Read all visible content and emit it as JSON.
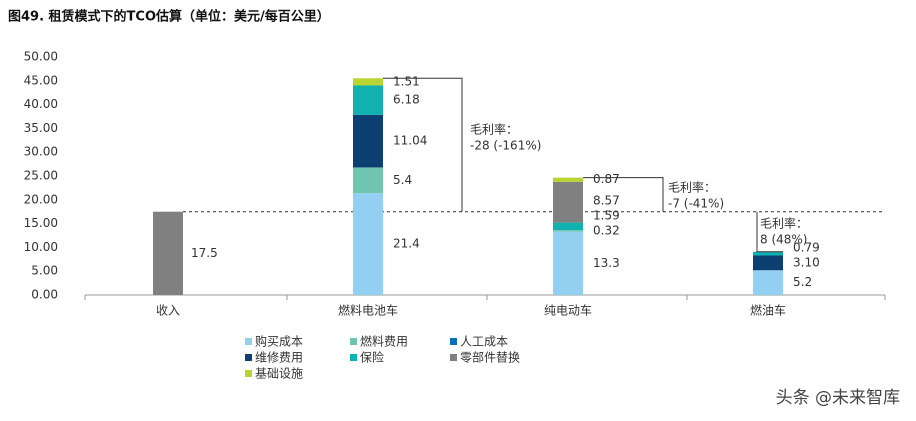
{
  "chart_data": {
    "type": "stacked_bar",
    "title": "图49. 租赁模式下的TCO估算（单位：美元/每百公里）",
    "categories": [
      "收入",
      "燃料电池车",
      "纯电动车",
      "燃油车"
    ],
    "revenue": {
      "value": 17.5,
      "color": "#808080"
    },
    "series": [
      {
        "name": "购买成本",
        "color": "#92cff0",
        "values": [
          null,
          21.4,
          13.3,
          5.2
        ]
      },
      {
        "name": "燃料费用",
        "color": "#6fc5b0",
        "values": [
          null,
          5.4,
          0.32,
          null
        ]
      },
      {
        "name": "人工成本",
        "color": "#0b70b5",
        "values": [
          null,
          null,
          null,
          null
        ]
      },
      {
        "name": "维修费用",
        "color": "#0d3f73",
        "values": [
          null,
          11.04,
          null,
          3.1
        ],
        "value_labels": [
          null,
          "11.04",
          null,
          "3.10"
        ]
      },
      {
        "name": "保险",
        "color": "#11b1b0",
        "values": [
          null,
          6.18,
          1.59,
          0.79
        ]
      },
      {
        "name": "零部件替换",
        "color": "#808080",
        "values": [
          null,
          null,
          8.57,
          null
        ]
      },
      {
        "name": "基础设施",
        "color": "#b8d433",
        "values": [
          null,
          1.51,
          0.87,
          null
        ]
      }
    ],
    "annotations": [
      {
        "label": "毛利率：",
        "text": "-28 (-161%)"
      },
      {
        "label": "毛利率：",
        "text": "-7 (-41%)"
      },
      {
        "label": "毛利率：",
        "text": "8 (48%)"
      }
    ],
    "ylim": [
      0,
      50
    ],
    "yticks": [
      {
        "value": 0,
        "label": "0.00"
      },
      {
        "value": 5,
        "label": "5.00"
      },
      {
        "value": 10,
        "label": "10.00"
      },
      {
        "value": 15,
        "label": "15.00"
      },
      {
        "value": 20,
        "label": "20.00"
      },
      {
        "value": 25,
        "label": "25.00"
      },
      {
        "value": 30,
        "label": "30.00"
      },
      {
        "value": 35,
        "label": "35.00"
      },
      {
        "value": 40,
        "label": "40.00"
      },
      {
        "value": 45,
        "label": "45.00"
      },
      {
        "value": 50,
        "label": "50.00"
      }
    ],
    "watermark": "头条 @未来智库"
  }
}
